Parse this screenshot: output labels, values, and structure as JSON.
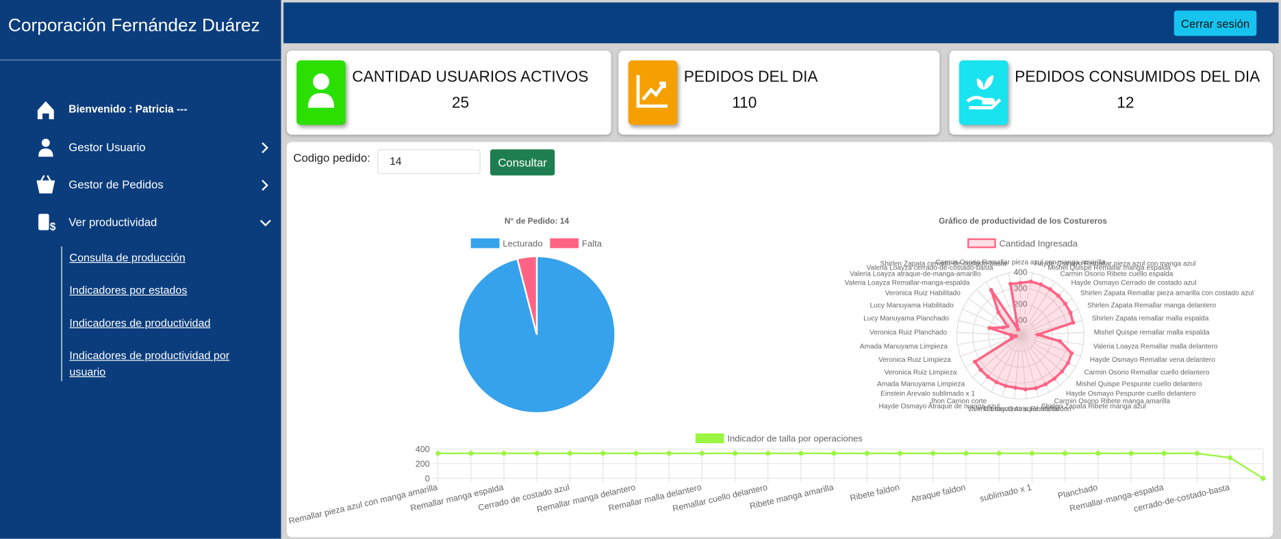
{
  "sidebar": {
    "brand": "Corporación Fernández Duárez",
    "welcome": "Bienvenido : Patricia ---",
    "menu": [
      "Gestor Usuario",
      "Gestor de Pedidos",
      "Ver productividad"
    ],
    "submenu": [
      "Consulta de producción",
      "Indicadores por estados",
      "Indicadores de productividad",
      "Indicadores de productividad por usuario"
    ]
  },
  "header": {
    "logout": "Cerrar sesión"
  },
  "cards": [
    {
      "title": "CANTIDAD USUARIOS ACTIVOS",
      "value": 25
    },
    {
      "title": "PEDIDOS DEL DIA",
      "value": 110
    },
    {
      "title": "PEDIDOS CONSUMIDOS DEL DIA",
      "value": 12
    }
  ],
  "form": {
    "label": "Codigo pedido:",
    "input": "14",
    "button": "Consultar"
  },
  "chart_data": [
    {
      "type": "pie",
      "title": "N° de Pedido: 14",
      "categories": [
        "Lecturado",
        "Falta"
      ],
      "values": [
        96,
        4
      ],
      "colors": [
        "#36a2eb",
        "#ff6384"
      ]
    },
    {
      "type": "radar",
      "title": "Gráfico de productividad de los Costureros",
      "categories": [
        "Carmin Osorio Remallar pieza azul con manga amarilla",
        "Hayde Osmayo Remallar pieza azul con manga azul",
        "Mishel Quispe Remallar manga espalda",
        "Carmin Osorio Ribete cuello espalda",
        "Hayde Osmayo Cerrado de costado azul",
        "Shirlen Zapata Remallar pieza amarilla con costado azul",
        "Shirlen Zapata Remallar manga delantero",
        "Shirlen Zapata remallar malla espalda",
        "Mishel Quispe remallar malla espalda",
        "Valeria Loayza Remallar malla delantero",
        "Hayde Osmayo Remallar vena delantero",
        "Carmin Osorio Remallar cuello delantero",
        "Mishel Quispe Pespunte cuello delantero",
        "Hayde Osmayo Pespunte cuello delantero",
        "Carmin Osorio Ribete manga amarilla",
        "Shirlen Zapata Ribete manga azul",
        "Carmin Osorio Ribete faldon",
        "Valeria Loayza Atraque faldon",
        "Hayde Osmayo Atraque de manga azul",
        "Jhon Carrion corte",
        "Einstein Arevalo sublimado x 1",
        "Amada Manuyama Limpieza",
        "Veronica Ruiz Limpieza",
        "Veronica Ruiz Limpieza",
        "Amada Manuyama Limpieza",
        "Veronica Ruiz Planchado",
        "Lucy Manuyama Planchado",
        "Lucy Manuyama Habilitado",
        "Veronica Ruiz Habilitado",
        "Valeria Loayza Remallar-manga-espalda",
        "Valeria Loayza atraque-de-manga-amarillo",
        "Valeria Loayza cerrado-de-costado-basta",
        "Shirlen Zapata cerrado-de-costado-basta"
      ],
      "series": [
        {
          "name": "Cantidad Ingresada",
          "color": "#ff6384",
          "values": [
            330,
            345,
            345,
            345,
            345,
            345,
            345,
            340,
            110,
            250,
            340,
            345,
            345,
            345,
            345,
            345,
            340,
            330,
            330,
            330,
            330,
            330,
            330,
            60,
            30,
            60,
            200,
            120,
            100,
            200,
            340,
            40,
            330
          ]
        }
      ],
      "ylim": [
        0,
        400
      ],
      "yticks": [
        100,
        200,
        300,
        400
      ]
    },
    {
      "type": "line",
      "categories": [
        "Remallar pieza azul con manga amarilla",
        null,
        "Remallar manga espalda",
        null,
        "Cerrado de costado azul",
        null,
        "Remallar manga delantero",
        null,
        "Remallar malla delantero",
        null,
        "Remallar cuello delantero",
        null,
        "Ribete manga amarilla",
        null,
        "Ribete faldon",
        null,
        "Atraque faldon",
        null,
        "sublimado x 1",
        null,
        "Planchado",
        null,
        "Remallar-manga-espalda",
        null,
        "cerrado-de-costado-basta",
        null
      ],
      "series": [
        {
          "name": "Indicador de talla por operaciones",
          "color": "#9bf542",
          "values": [
            340,
            340,
            340,
            340,
            340,
            340,
            340,
            340,
            340,
            340,
            340,
            340,
            340,
            340,
            340,
            340,
            340,
            340,
            340,
            340,
            340,
            340,
            340,
            340,
            280,
            0
          ]
        }
      ],
      "ylim": [
        0,
        400
      ],
      "yticks": [
        0,
        200,
        400
      ]
    }
  ]
}
